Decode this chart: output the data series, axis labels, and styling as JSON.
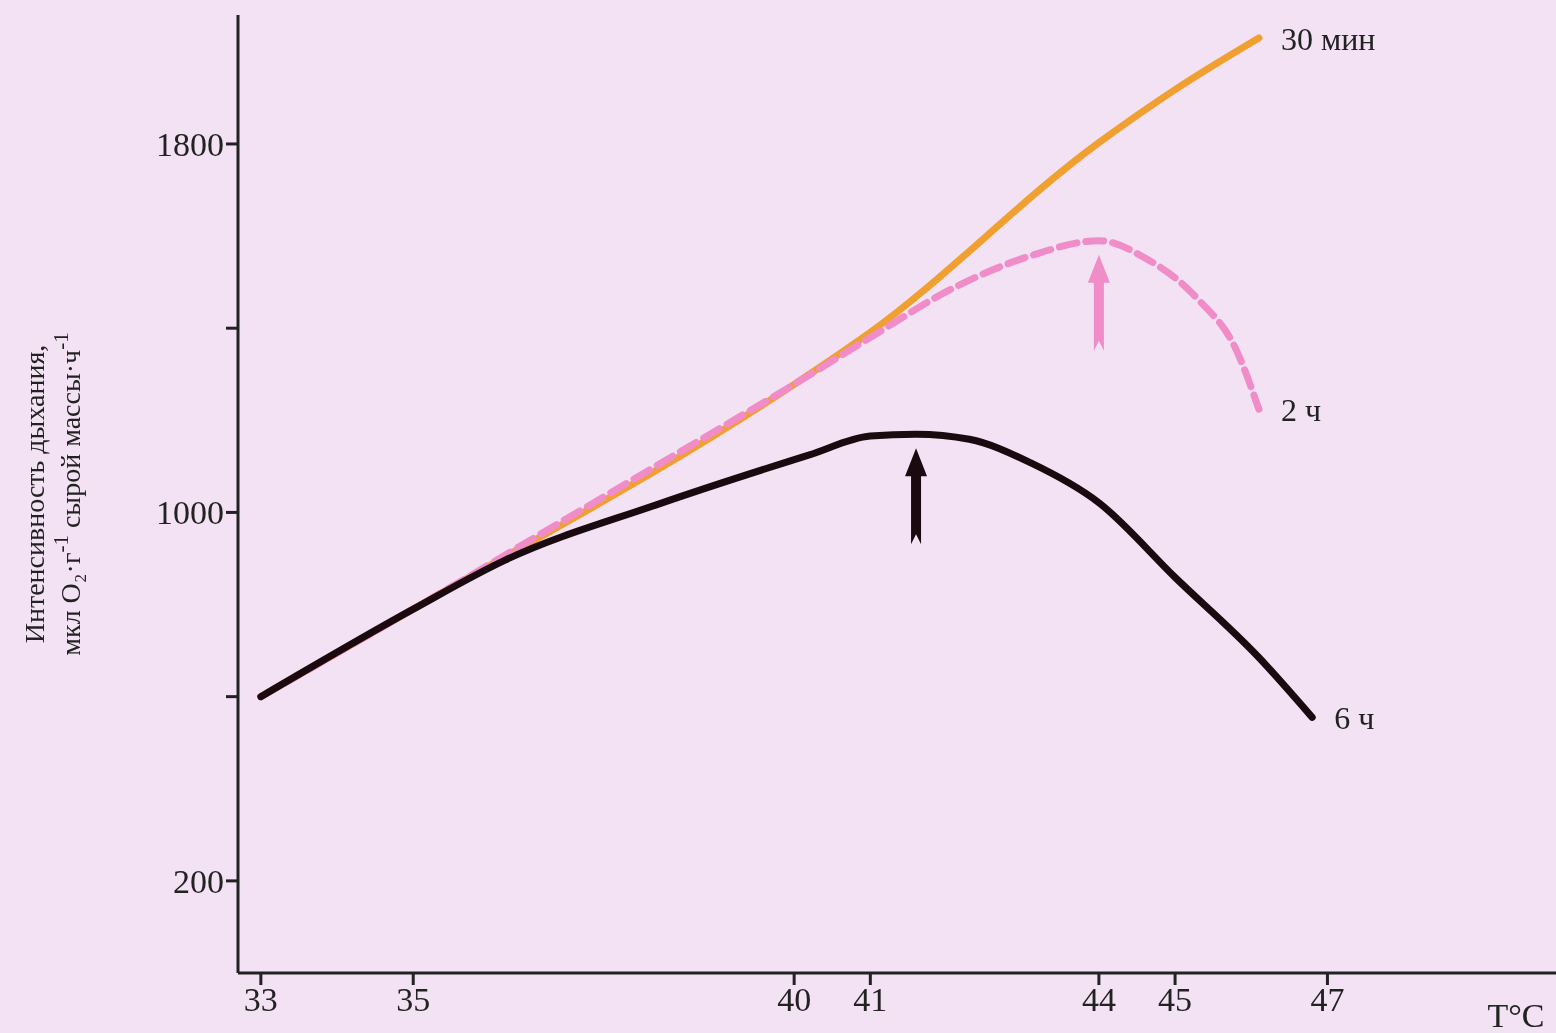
{
  "chart_data": {
    "type": "line",
    "xlabel": "T°C",
    "ylabel": "Интенсивность дыхания,\nмкл O₂·г$^{-1}$ сырой массы·ч$^{-1}$",
    "xlim": [
      32.7,
      50
    ],
    "xticks": [
      33,
      35,
      40,
      41,
      44,
      45,
      47
    ],
    "ylim": [
      0,
      2080
    ],
    "yticks": [
      200,
      {
        "value": 600,
        "label": null
      },
      1000,
      {
        "value": 1400,
        "label": null
      },
      1800
    ],
    "marker": "none",
    "series": [
      {
        "name": "30 мин",
        "color": "#f0a030",
        "line_style": "solid",
        "x": [
          33,
          35,
          40,
          41,
          44,
          45,
          46.1
        ],
        "values": [
          600,
          790,
          1278,
          1391,
          1803,
          1918,
          2030
        ]
      },
      {
        "name": "2 ч",
        "color": "#f08cc8",
        "line_style": "dashed",
        "x": [
          33,
          35,
          37,
          39,
          40,
          41,
          42.1,
          43.1,
          44,
          44.6,
          45.3,
          45.8,
          46.1
        ],
        "values": [
          600,
          790,
          985,
          1180,
          1278,
          1380,
          1488,
          1557,
          1590,
          1553,
          1463,
          1354,
          1224
        ]
      },
      {
        "name": "6 ч",
        "color": "#1a0a10",
        "line_style": "solid",
        "x": [
          33,
          35,
          36.2,
          38.2,
          40.2,
          41,
          41.6,
          42.3,
          43.1,
          44,
          45,
          46.1,
          46.8
        ],
        "values": [
          600,
          790,
          896,
          1017,
          1125,
          1166,
          1170,
          1159,
          1108,
          1021,
          859,
          685,
          555
        ]
      }
    ]
  }
}
